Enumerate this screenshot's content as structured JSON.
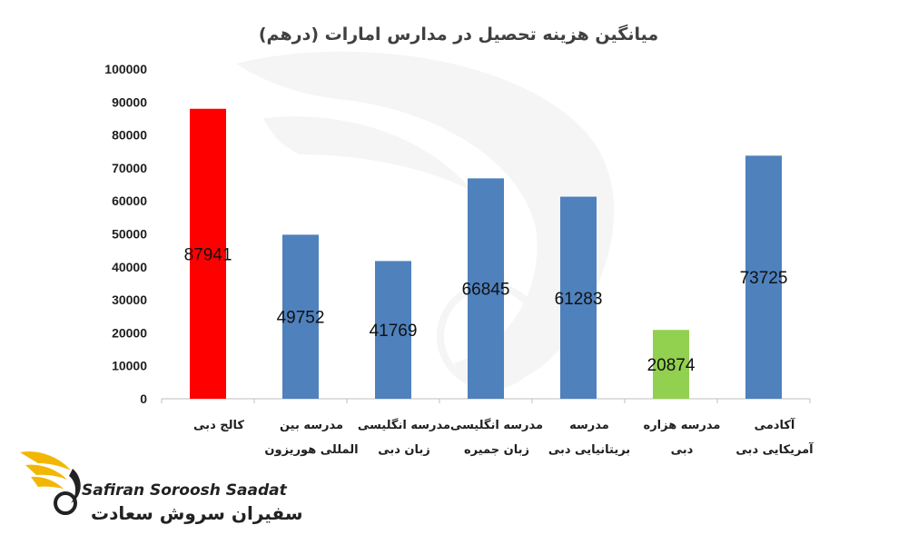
{
  "chart_data": {
    "type": "bar",
    "title": "میانگین هزینه تحصیل در مدارس امارات (درهم)",
    "categories": [
      [
        "کالج دبی"
      ],
      [
        "مدرسه بین",
        "المللی هوریزون"
      ],
      [
        "مدرسه انگلیسی",
        "زبان دبی"
      ],
      [
        "مدرسه انگلیسی",
        "زبان جمیره"
      ],
      [
        "مدرسه",
        "بریتانیایی دبی"
      ],
      [
        "مدرسه هزاره",
        "دبی"
      ],
      [
        "آکادمی",
        "آمریکایی دبی"
      ]
    ],
    "values": [
      87941,
      49752,
      41769,
      66845,
      61283,
      20874,
      73725
    ],
    "bar_colors": [
      "#ff0000",
      "#4f81bd",
      "#4f81bd",
      "#4f81bd",
      "#4f81bd",
      "#92d050",
      "#4f81bd"
    ],
    "ylim": [
      0,
      100000
    ],
    "yticks": [
      "0",
      "10000",
      "20000",
      "30000",
      "40000",
      "50000",
      "60000",
      "70000",
      "80000",
      "90000",
      "100000"
    ],
    "grid": false,
    "legend": "none"
  },
  "logo": {
    "name_en": "Safiran Soroosh Saadat",
    "name_fa": "سفیران سروش سعادت",
    "wing_color": "#f2b705",
    "dark_color": "#222222"
  }
}
